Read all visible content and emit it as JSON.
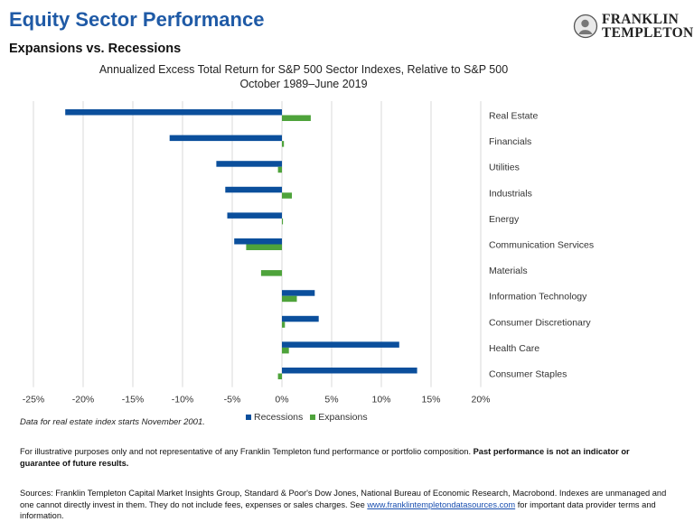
{
  "page": {
    "title": "Equity Sector Performance",
    "subtitle": "Expansions vs. Recessions",
    "logo_line1": "FRANKLIN",
    "logo_line2": "TEMPLETON",
    "note": "Data for real estate index starts November 2001.",
    "disclaimer_normal": "For illustrative purposes only and not representative of any Franklin Templeton fund performance or portfolio composition. ",
    "disclaimer_bold": "Past performance is not an indicator or guarantee of future results.",
    "sources_pre": "Sources: Franklin Templeton Capital Market Insights Group, Standard & Poor's Dow Jones, National Bureau of Economic Research, Macrobond. Indexes are unmanaged and one cannot directly invest in them. They do not include fees, expenses or sales charges. See ",
    "sources_link": "www.franklintempletondatasources.com",
    "sources_post": " for important data provider terms and information."
  },
  "colors": {
    "recessions": "#0b4f9c",
    "expansions": "#4ea33b",
    "title": "#1f5aa6",
    "gridline": "#d9d9d9"
  },
  "chart_data": {
    "type": "bar",
    "orientation": "horizontal",
    "title": "Annualized Excess Total Return for S&P 500 Sector Indexes, Relative to S&P 500",
    "subtitle": "October 1989–June 2019",
    "categories": [
      "Real Estate",
      "Financials",
      "Utilities",
      "Industrials",
      "Energy",
      "Communication Services",
      "Materials",
      "Information Technology",
      "Consumer Discretionary",
      "Health Care",
      "Consumer Staples"
    ],
    "series": [
      {
        "name": "Recessions",
        "values": [
          -21.8,
          -11.3,
          -6.6,
          -5.7,
          -5.5,
          -4.8,
          0.0,
          3.3,
          3.7,
          11.8,
          13.6
        ]
      },
      {
        "name": "Expansions",
        "values": [
          2.9,
          0.2,
          -0.4,
          1.0,
          0.1,
          -3.6,
          -2.1,
          1.5,
          0.3,
          0.7,
          -0.4
        ]
      }
    ],
    "xlim": [
      -25,
      20
    ],
    "xticks": [
      -25,
      -20,
      -15,
      -10,
      -5,
      0,
      5,
      10,
      15,
      20
    ],
    "xtick_labels": [
      "-25%",
      "-20%",
      "-15%",
      "-10%",
      "-5%",
      "0%",
      "5%",
      "10%",
      "15%",
      "20%"
    ],
    "gridlines": "vertical",
    "legend": "bottom"
  }
}
